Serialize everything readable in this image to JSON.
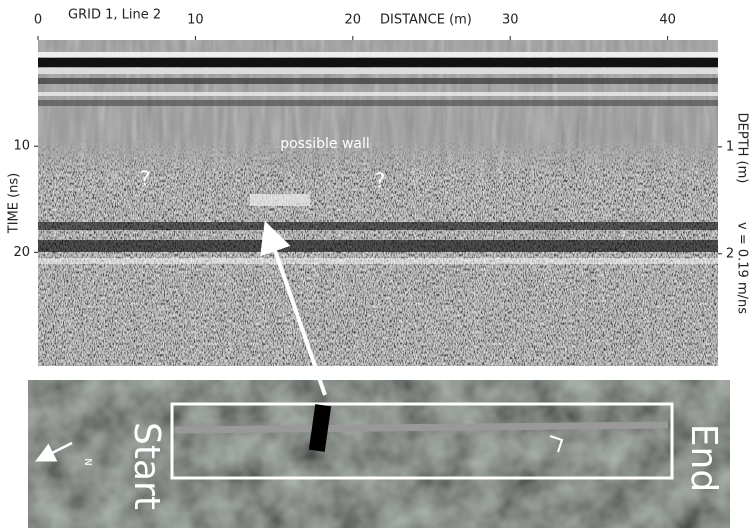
{
  "figure": {
    "title": "GRID 1, Line 2",
    "x_axis": {
      "label": "DISTANCE (m)",
      "lim": [
        0,
        43.2
      ],
      "ticks": [
        0,
        10,
        20,
        30,
        40
      ]
    },
    "time_axis": {
      "label": "TIME (ns)",
      "lim": [
        0,
        30.7
      ],
      "ticks": [
        10,
        20
      ]
    },
    "depth_axis": {
      "label": "DEPTH (m)",
      "lim": [
        0,
        3.05
      ],
      "ticks": [
        1,
        2
      ],
      "velocity": "v = 0.19 m/ns"
    },
    "annotations": {
      "feature": "possible wall",
      "question_marks": [
        "?",
        "?"
      ]
    },
    "map": {
      "start": "Start",
      "end": "End",
      "north": "N"
    }
  }
}
